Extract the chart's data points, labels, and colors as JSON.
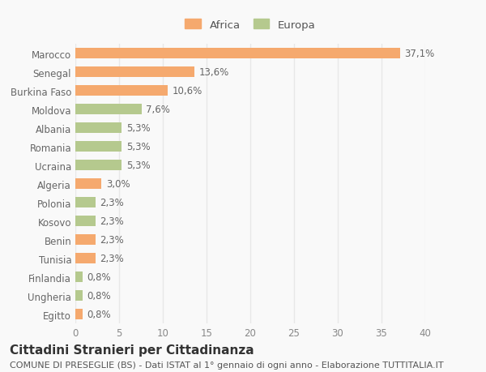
{
  "categories": [
    "Egitto",
    "Ungheria",
    "Finlandia",
    "Tunisia",
    "Benin",
    "Kosovo",
    "Polonia",
    "Algeria",
    "Ucraina",
    "Romania",
    "Albania",
    "Moldova",
    "Burkina Faso",
    "Senegal",
    "Marocco"
  ],
  "values": [
    0.8,
    0.8,
    0.8,
    2.3,
    2.3,
    2.3,
    2.3,
    3.0,
    5.3,
    5.3,
    5.3,
    7.6,
    10.6,
    13.6,
    37.1
  ],
  "labels": [
    "0,8%",
    "0,8%",
    "0,8%",
    "2,3%",
    "2,3%",
    "2,3%",
    "2,3%",
    "3,0%",
    "5,3%",
    "5,3%",
    "5,3%",
    "7,6%",
    "10,6%",
    "13,6%",
    "37,1%"
  ],
  "colors": [
    "#f5a96e",
    "#b5c98e",
    "#b5c98e",
    "#f5a96e",
    "#f5a96e",
    "#b5c98e",
    "#b5c98e",
    "#f5a96e",
    "#b5c98e",
    "#b5c98e",
    "#b5c98e",
    "#b5c98e",
    "#f5a96e",
    "#f5a96e",
    "#f5a96e"
  ],
  "africa_color": "#f5a96e",
  "europa_color": "#b5c98e",
  "title": "Cittadini Stranieri per Cittadinanza",
  "subtitle": "COMUNE DI PRESEGLIE (BS) - Dati ISTAT al 1° gennaio di ogni anno - Elaborazione TUTTITALIA.IT",
  "xlim": [
    0,
    40
  ],
  "xticks": [
    0,
    5,
    10,
    15,
    20,
    25,
    30,
    35,
    40
  ],
  "bg_color": "#f9f9f9",
  "grid_color": "#e8e8e8",
  "bar_height": 0.55,
  "label_fontsize": 8.5,
  "tick_fontsize": 8.5,
  "title_fontsize": 11,
  "subtitle_fontsize": 8
}
